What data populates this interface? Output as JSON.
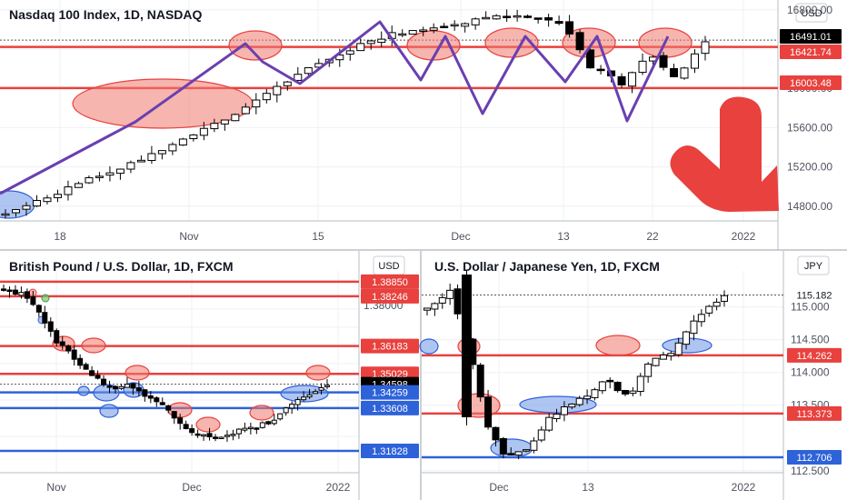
{
  "colors": {
    "support": "#2e62d9",
    "resistance": "#e8413e",
    "zone_red_fill": "rgba(240,120,110,0.55)",
    "zone_blue_fill": "rgba(110,150,230,0.55)",
    "path": "#6a3fb0",
    "candle_up": "#ffffff",
    "candle_down": "#000000",
    "arrow": "#e8413e"
  },
  "chart_data": [
    {
      "type": "candlestick",
      "title": "Nasdaq 100 Index, 1D, NASDAQ",
      "currency": "USD",
      "x_ticks": [
        "18",
        "Nov",
        "15",
        "Dec",
        "13",
        "22",
        "2022"
      ],
      "y_ticks": [
        14800,
        15200,
        15600,
        16000,
        16400,
        16800
      ],
      "ylim": [
        14650,
        16900
      ],
      "price_labels": [
        {
          "text": "16491.01",
          "value": 16491.01,
          "kind": "last"
        },
        {
          "text": "16421.74",
          "value": 16421.74,
          "kind": "resistance"
        },
        {
          "text": "16003.48",
          "value": 16003.48,
          "kind": "resistance"
        }
      ],
      "levels": [
        16421.74,
        16003.48
      ],
      "grid": true,
      "annotation_arrow": "down"
    },
    {
      "type": "candlestick",
      "title": "British Pound / U.S. Dollar, 1D, FXCM",
      "currency": "USD",
      "x_ticks": [
        "Nov",
        "Dec",
        "2022"
      ],
      "ylim": [
        1.31,
        1.393
      ],
      "price_labels": [
        {
          "text": "1.38850",
          "value": 1.3885,
          "kind": "resistance"
        },
        {
          "text": "1.38246",
          "value": 1.38246,
          "kind": "resistance"
        },
        {
          "text": "1.36183",
          "value": 1.36183,
          "kind": "resistance"
        },
        {
          "text": "1.35029",
          "value": 1.35029,
          "kind": "resistance"
        },
        {
          "text": "1.34598",
          "value": 1.34598,
          "kind": "last"
        },
        {
          "text": "1.34259",
          "value": 1.34259,
          "kind": "support"
        },
        {
          "text": "1.33608",
          "value": 1.33608,
          "kind": "support"
        },
        {
          "text": "1.31828",
          "value": 1.31828,
          "kind": "support"
        }
      ],
      "grid": true
    },
    {
      "type": "candlestick",
      "title": "U.S. Dollar / Japanese Yen, 1D, FXCM",
      "currency": "JPY",
      "x_ticks": [
        "Dec",
        "13",
        "2022"
      ],
      "y_ticks": [
        112.5,
        113.5,
        114.0,
        114.5,
        115.0
      ],
      "ylim": [
        112.4,
        115.55
      ],
      "price_labels": [
        {
          "text": "115.182",
          "value": 115.182,
          "kind": "last"
        },
        {
          "text": "114.262",
          "value": 114.262,
          "kind": "resistance"
        },
        {
          "text": "113.373",
          "value": 113.373,
          "kind": "resistance"
        },
        {
          "text": "112.706",
          "value": 112.706,
          "kind": "support"
        }
      ],
      "grid": true
    }
  ]
}
